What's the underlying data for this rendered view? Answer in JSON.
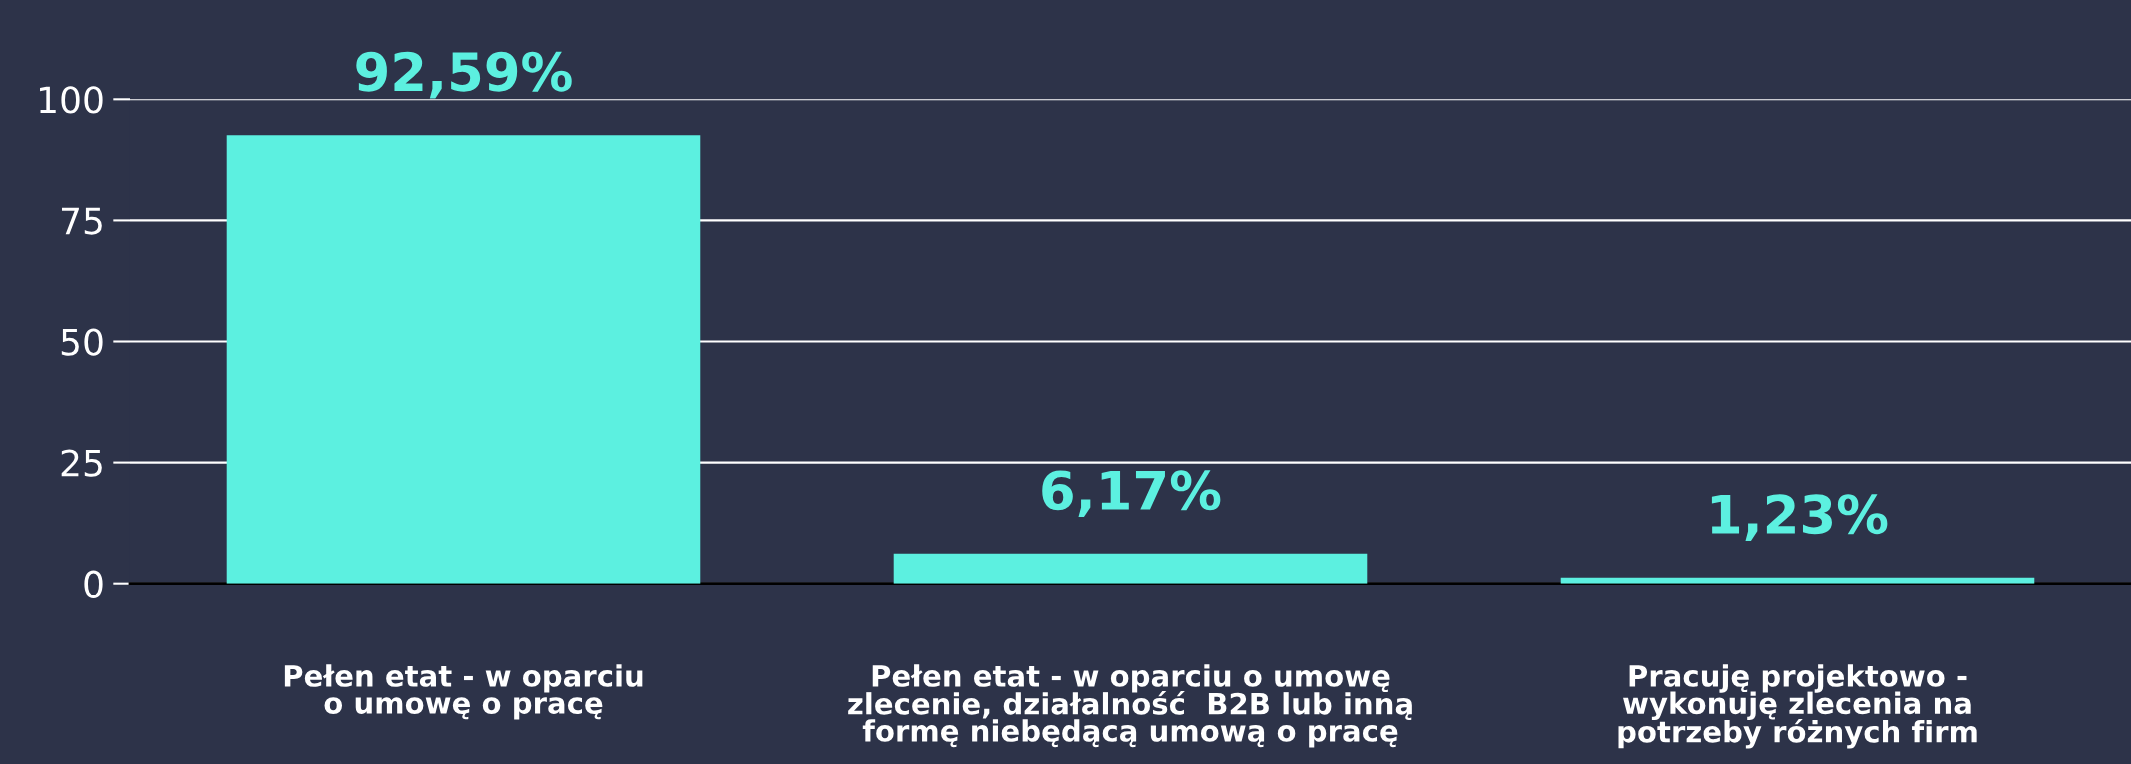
{
  "chart_data": {
    "type": "bar",
    "categories": [
      "Pełen etat - w oparciu\no umowę o pracę",
      "Pełen etat - w oparciu o umowę\nzlecenie, działalność  B2B lub inną\nformę niebędącą umową o pracę",
      "Pracuję projektowo -\nwykonuję zlecenia na\npotrzeby różnych firm"
    ],
    "values": [
      92.59,
      6.17,
      1.23
    ],
    "value_labels": [
      "92,59%",
      "6,17%",
      "1,23%"
    ],
    "color": "#5cf0e0",
    "ylim": [
      0,
      100
    ],
    "yticks": [
      0,
      25,
      50,
      75,
      100
    ],
    "grid": "y"
  }
}
